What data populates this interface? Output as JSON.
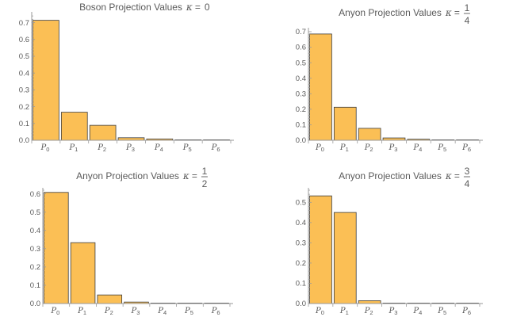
{
  "colors": {
    "bar_fill": "#fbbf55",
    "bar_stroke": "#3c3c3c",
    "axis": "#9a9a9a",
    "text": "#5a5a5a"
  },
  "chart_data": [
    {
      "type": "bar",
      "title": "Boson Projection Values",
      "kappa": {
        "symbol": "κ",
        "value_text": "0"
      },
      "categories": [
        {
          "base": "P",
          "sub": "0"
        },
        {
          "base": "P",
          "sub": "1"
        },
        {
          "base": "P",
          "sub": "2"
        },
        {
          "base": "P",
          "sub": "3"
        },
        {
          "base": "P",
          "sub": "4"
        },
        {
          "base": "P",
          "sub": "5"
        },
        {
          "base": "P",
          "sub": "6"
        }
      ],
      "values": [
        0.714,
        0.167,
        0.089,
        0.015,
        0.008,
        0.002,
        0.001
      ],
      "yticks": [
        0.0,
        0.1,
        0.2,
        0.3,
        0.4,
        0.5,
        0.6,
        0.7
      ],
      "ytick_labels": [
        "0.0",
        "0.1",
        "0.2",
        "0.3",
        "0.4",
        "0.5",
        "0.6",
        "0.7"
      ],
      "ylim": [
        0,
        0.75
      ],
      "grid": false
    },
    {
      "type": "bar",
      "title": "Anyon Projection Values",
      "kappa": {
        "symbol": "κ",
        "numerator": "1",
        "denominator": "4"
      },
      "categories": [
        {
          "base": "P",
          "sub": "0"
        },
        {
          "base": "P",
          "sub": "1"
        },
        {
          "base": "P",
          "sub": "2"
        },
        {
          "base": "P",
          "sub": "3"
        },
        {
          "base": "P",
          "sub": "4"
        },
        {
          "base": "P",
          "sub": "5"
        },
        {
          "base": "P",
          "sub": "6"
        }
      ],
      "values": [
        0.685,
        0.213,
        0.077,
        0.015,
        0.007,
        0.002,
        0.001
      ],
      "yticks": [
        0.0,
        0.1,
        0.2,
        0.3,
        0.4,
        0.5,
        0.6,
        0.7
      ],
      "ytick_labels": [
        "0.0",
        "0.1",
        "0.2",
        "0.3",
        "0.4",
        "0.5",
        "0.6",
        "0.7"
      ],
      "ylim": [
        0,
        0.71
      ],
      "grid": false
    },
    {
      "type": "bar",
      "title": "Anyon Projection Values",
      "kappa": {
        "symbol": "κ",
        "numerator": "1",
        "denominator": "2"
      },
      "categories": [
        {
          "base": "P",
          "sub": "0"
        },
        {
          "base": "P",
          "sub": "1"
        },
        {
          "base": "P",
          "sub": "2"
        },
        {
          "base": "P",
          "sub": "3"
        },
        {
          "base": "P",
          "sub": "4"
        },
        {
          "base": "P",
          "sub": "5"
        },
        {
          "base": "P",
          "sub": "6"
        }
      ],
      "values": [
        0.608,
        0.333,
        0.047,
        0.008,
        0.002,
        0.001,
        0.0005
      ],
      "yticks": [
        0.0,
        0.1,
        0.2,
        0.3,
        0.4,
        0.5,
        0.6
      ],
      "ytick_labels": [
        "0.0",
        "0.1",
        "0.2",
        "0.3",
        "0.4",
        "0.5",
        "0.6"
      ],
      "ylim": [
        0,
        0.62
      ],
      "grid": false
    },
    {
      "type": "bar",
      "title": "Anyon Projection Values",
      "kappa": {
        "symbol": "κ",
        "numerator": "3",
        "denominator": "4"
      },
      "categories": [
        {
          "base": "P",
          "sub": "0"
        },
        {
          "base": "P",
          "sub": "1"
        },
        {
          "base": "P",
          "sub": "2"
        },
        {
          "base": "P",
          "sub": "3"
        },
        {
          "base": "P",
          "sub": "4"
        },
        {
          "base": "P",
          "sub": "5"
        },
        {
          "base": "P",
          "sub": "6"
        }
      ],
      "values": [
        0.532,
        0.45,
        0.014,
        0.002,
        0.001,
        0.0005,
        0.0002
      ],
      "yticks": [
        0.0,
        0.1,
        0.2,
        0.3,
        0.4,
        0.5
      ],
      "ytick_labels": [
        "0.0",
        "0.1",
        "0.2",
        "0.3",
        "0.4",
        "0.5"
      ],
      "ylim": [
        0,
        0.56
      ],
      "grid": false
    }
  ]
}
